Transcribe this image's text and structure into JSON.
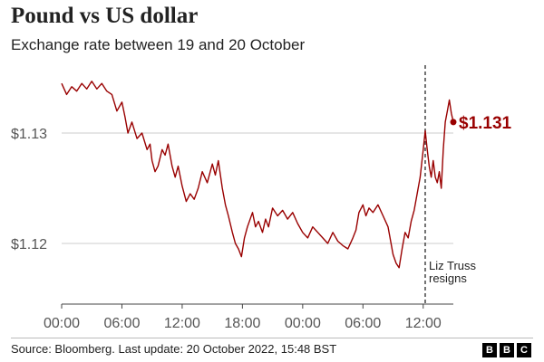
{
  "header": {
    "title": "Pound vs US dollar",
    "subtitle": "Exchange rate between 19 and 20 October"
  },
  "footer": {
    "source": "Source: Bloomberg. Last update: 20 October 2022, 15:48 BST",
    "logo_letters": [
      "B",
      "B",
      "C"
    ]
  },
  "colors": {
    "series": "#990000",
    "grid": "#cccccc",
    "axis": "#444444",
    "annotation": "#444444"
  },
  "chart_data": {
    "type": "line",
    "title": "Pound vs US dollar",
    "subtitle": "Exchange rate between 19 and 20 October",
    "xlabel": "",
    "ylabel": "",
    "x_unit": "hours since 00:00 on 19 October",
    "xlim": [
      0,
      39
    ],
    "ylim": [
      1.1145,
      1.1355
    ],
    "x_ticks": [
      {
        "value": 0,
        "label": "00:00"
      },
      {
        "value": 6,
        "label": "06:00"
      },
      {
        "value": 12,
        "label": "12:00"
      },
      {
        "value": 18,
        "label": "18:00"
      },
      {
        "value": 24,
        "label": "00:00"
      },
      {
        "value": 30,
        "label": "06:00"
      },
      {
        "value": 36,
        "label": "12:00"
      }
    ],
    "y_ticks": [
      {
        "value": 1.12,
        "label": "$1.12"
      },
      {
        "value": 1.13,
        "label": "$1.13"
      }
    ],
    "grid": {
      "horizontal": true,
      "vertical": false
    },
    "end_label": "$1.131",
    "annotation": {
      "x": 36.2,
      "label_lines": [
        "Liz Truss",
        "resigns"
      ]
    },
    "series": [
      {
        "color": "#990000",
        "points": [
          [
            0,
            1.1345
          ],
          [
            0.5,
            1.1335
          ],
          [
            1,
            1.1342
          ],
          [
            1.5,
            1.1338
          ],
          [
            2,
            1.1345
          ],
          [
            2.5,
            1.134
          ],
          [
            3,
            1.1347
          ],
          [
            3.5,
            1.134
          ],
          [
            4,
            1.1345
          ],
          [
            4.5,
            1.1338
          ],
          [
            5,
            1.1335
          ],
          [
            5.5,
            1.132
          ],
          [
            6,
            1.1328
          ],
          [
            6.3,
            1.1315
          ],
          [
            6.6,
            1.13
          ],
          [
            7,
            1.131
          ],
          [
            7.5,
            1.1295
          ],
          [
            8,
            1.13
          ],
          [
            8.5,
            1.1285
          ],
          [
            8.8,
            1.129
          ],
          [
            9,
            1.1275
          ],
          [
            9.3,
            1.1265
          ],
          [
            9.6,
            1.127
          ],
          [
            10,
            1.1285
          ],
          [
            10.3,
            1.128
          ],
          [
            10.6,
            1.129
          ],
          [
            11,
            1.127
          ],
          [
            11.3,
            1.126
          ],
          [
            11.6,
            1.127
          ],
          [
            12,
            1.1252
          ],
          [
            12.4,
            1.1238
          ],
          [
            12.8,
            1.1245
          ],
          [
            13.2,
            1.124
          ],
          [
            13.6,
            1.125
          ],
          [
            14,
            1.1265
          ],
          [
            14.5,
            1.1255
          ],
          [
            15,
            1.1272
          ],
          [
            15.3,
            1.1262
          ],
          [
            15.6,
            1.1275
          ],
          [
            16,
            1.125
          ],
          [
            16.3,
            1.1235
          ],
          [
            16.6,
            1.1225
          ],
          [
            17,
            1.121
          ],
          [
            17.3,
            1.12
          ],
          [
            17.6,
            1.1195
          ],
          [
            17.9,
            1.1188
          ],
          [
            18.2,
            1.1205
          ],
          [
            18.5,
            1.1215
          ],
          [
            19,
            1.1228
          ],
          [
            19.3,
            1.1215
          ],
          [
            19.6,
            1.122
          ],
          [
            20,
            1.121
          ],
          [
            20.3,
            1.1222
          ],
          [
            20.6,
            1.1215
          ],
          [
            21,
            1.1232
          ],
          [
            21.5,
            1.1225
          ],
          [
            22,
            1.123
          ],
          [
            22.5,
            1.1222
          ],
          [
            23,
            1.1228
          ],
          [
            23.5,
            1.1218
          ],
          [
            24,
            1.121
          ],
          [
            24.5,
            1.1205
          ],
          [
            25,
            1.1215
          ],
          [
            25.5,
            1.121
          ],
          [
            26,
            1.1205
          ],
          [
            26.5,
            1.12
          ],
          [
            27,
            1.121
          ],
          [
            27.5,
            1.1202
          ],
          [
            28,
            1.1198
          ],
          [
            28.5,
            1.1195
          ],
          [
            29,
            1.1205
          ],
          [
            29.3,
            1.1212
          ],
          [
            29.6,
            1.1228
          ],
          [
            30,
            1.1235
          ],
          [
            30.3,
            1.1225
          ],
          [
            30.6,
            1.1232
          ],
          [
            31,
            1.1228
          ],
          [
            31.5,
            1.1235
          ],
          [
            32,
            1.1225
          ],
          [
            32.5,
            1.1215
          ],
          [
            33,
            1.119
          ],
          [
            33.3,
            1.1182
          ],
          [
            33.6,
            1.1178
          ],
          [
            33.9,
            1.1195
          ],
          [
            34.2,
            1.121
          ],
          [
            34.5,
            1.1205
          ],
          [
            34.8,
            1.122
          ],
          [
            35.1,
            1.123
          ],
          [
            35.4,
            1.1245
          ],
          [
            35.7,
            1.126
          ],
          [
            36,
            1.1285
          ],
          [
            36.2,
            1.1302
          ],
          [
            36.4,
            1.1285
          ],
          [
            36.6,
            1.127
          ],
          [
            36.8,
            1.126
          ],
          [
            37,
            1.1275
          ],
          [
            37.2,
            1.126
          ],
          [
            37.4,
            1.1255
          ],
          [
            37.6,
            1.1265
          ],
          [
            37.8,
            1.125
          ],
          [
            38,
            1.1285
          ],
          [
            38.2,
            1.131
          ],
          [
            38.4,
            1.132
          ],
          [
            38.6,
            1.133
          ],
          [
            38.8,
            1.1318
          ],
          [
            39,
            1.131
          ]
        ]
      }
    ]
  }
}
